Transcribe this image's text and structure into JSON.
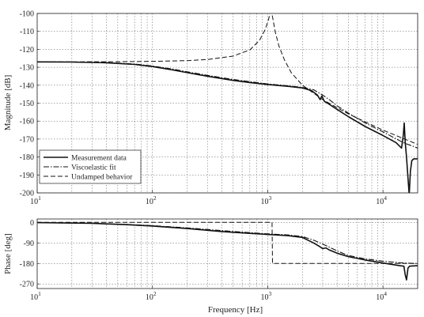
{
  "chart_data": [
    {
      "type": "line",
      "ylabel": "Magnitude [dB]",
      "xlabel": "",
      "xscale": "log",
      "xlim": [
        10,
        20000
      ],
      "ylim": [
        -200,
        -100
      ],
      "grid": true,
      "legend_position": "bottom-left",
      "x_ticks": [
        {
          "base": "10",
          "exp": "1"
        },
        {
          "base": "10",
          "exp": "2"
        },
        {
          "base": "10",
          "exp": "3"
        },
        {
          "base": "10",
          "exp": "4"
        }
      ],
      "y_ticks": [
        "-100",
        "-110",
        "-120",
        "-130",
        "-140",
        "-150",
        "-160",
        "-170",
        "-180",
        "-190",
        "-200"
      ],
      "series": [
        {
          "name": "Measurement data",
          "style": "solid",
          "points": [
            [
              10,
              -127
            ],
            [
              20,
              -127.1
            ],
            [
              40,
              -127.5
            ],
            [
              70,
              -128.4
            ],
            [
              100,
              -129.6
            ],
            [
              150,
              -131.5
            ],
            [
              200,
              -133
            ],
            [
              300,
              -135
            ],
            [
              500,
              -137.3
            ],
            [
              700,
              -138.5
            ],
            [
              1000,
              -139.6
            ],
            [
              1500,
              -140.6
            ],
            [
              2000,
              -141.5
            ],
            [
              2400,
              -143
            ],
            [
              2700,
              -145.5
            ],
            [
              2850,
              -148
            ],
            [
              2950,
              -146
            ],
            [
              3100,
              -149
            ],
            [
              3300,
              -150
            ],
            [
              4000,
              -153.5
            ],
            [
              5000,
              -157.5
            ],
            [
              7000,
              -163
            ],
            [
              10000,
              -168
            ],
            [
              13000,
              -172
            ],
            [
              14500,
              -175
            ],
            [
              15000,
              -168
            ],
            [
              15300,
              -161
            ],
            [
              15600,
              -172
            ],
            [
              16000,
              -180
            ],
            [
              16500,
              -192
            ],
            [
              16900,
              -201
            ],
            [
              17300,
              -188
            ],
            [
              17800,
              -182
            ],
            [
              18500,
              -181
            ],
            [
              20000,
              -181
            ]
          ]
        },
        {
          "name": "Viscoelastic fit",
          "style": "dash-dot",
          "points": [
            [
              10,
              -127
            ],
            [
              20,
              -127.1
            ],
            [
              40,
              -127.4
            ],
            [
              70,
              -128.2
            ],
            [
              100,
              -129.3
            ],
            [
              150,
              -131
            ],
            [
              200,
              -132.5
            ],
            [
              300,
              -134.5
            ],
            [
              500,
              -136.8
            ],
            [
              700,
              -138
            ],
            [
              1000,
              -139.3
            ],
            [
              1500,
              -140.3
            ],
            [
              2000,
              -141.2
            ],
            [
              2500,
              -142.5
            ],
            [
              3000,
              -145.5
            ],
            [
              3500,
              -148.5
            ],
            [
              4000,
              -151.5
            ],
            [
              5000,
              -155.5
            ],
            [
              7000,
              -161
            ],
            [
              10000,
              -166
            ],
            [
              15000,
              -172
            ],
            [
              20000,
              -175
            ]
          ]
        },
        {
          "name": "Undamped behavior",
          "style": "dashed",
          "points": [
            [
              10,
              -127
            ],
            [
              50,
              -126.9
            ],
            [
              100,
              -126.7
            ],
            [
              200,
              -126.3
            ],
            [
              300,
              -125.7
            ],
            [
              500,
              -123.8
            ],
            [
              700,
              -120.3
            ],
            [
              850,
              -115
            ],
            [
              950,
              -109
            ],
            [
              1020,
              -103
            ],
            [
              1055,
              -99
            ],
            [
              1075,
              -99
            ],
            [
              1110,
              -103
            ],
            [
              1160,
              -110
            ],
            [
              1250,
              -118
            ],
            [
              1400,
              -126
            ],
            [
              1600,
              -133
            ],
            [
              2000,
              -140
            ],
            [
              3000,
              -148
            ],
            [
              5000,
              -156
            ],
            [
              10000,
              -165
            ],
            [
              20000,
              -173
            ]
          ]
        }
      ]
    },
    {
      "type": "line",
      "ylabel": "Phase [deg]",
      "xlabel": "Frequency [Hz]",
      "xscale": "log",
      "xlim": [
        10,
        20000
      ],
      "ylim": [
        -290,
        15
      ],
      "grid": true,
      "x_ticks": [
        {
          "base": "10",
          "exp": "1"
        },
        {
          "base": "10",
          "exp": "2"
        },
        {
          "base": "10",
          "exp": "3"
        },
        {
          "base": "10",
          "exp": "4"
        }
      ],
      "y_ticks": [
        "0",
        "-90",
        "-180",
        "-270"
      ],
      "y_tick_values": [
        0,
        -90,
        -180,
        -270
      ],
      "series": [
        {
          "name": "Measurement data",
          "style": "solid",
          "points": [
            [
              10,
              -1
            ],
            [
              30,
              -4
            ],
            [
              60,
              -10
            ],
            [
              100,
              -16
            ],
            [
              200,
              -27
            ],
            [
              400,
              -40
            ],
            [
              700,
              -48
            ],
            [
              1000,
              -53
            ],
            [
              1500,
              -58
            ],
            [
              2000,
              -66
            ],
            [
              2500,
              -90
            ],
            [
              2800,
              -105
            ],
            [
              3000,
              -115
            ],
            [
              3200,
              -112
            ],
            [
              3400,
              -120
            ],
            [
              4000,
              -135
            ],
            [
              5000,
              -150
            ],
            [
              7000,
              -165
            ],
            [
              10000,
              -178
            ],
            [
              14000,
              -190
            ],
            [
              15200,
              -192
            ],
            [
              15600,
              -230
            ],
            [
              16000,
              -252
            ],
            [
              16500,
              -200
            ],
            [
              17000,
              -192
            ],
            [
              20000,
              -190
            ]
          ]
        },
        {
          "name": "Viscoelastic fit",
          "style": "dash-dot",
          "points": [
            [
              10,
              -1
            ],
            [
              30,
              -4
            ],
            [
              60,
              -9
            ],
            [
              100,
              -14
            ],
            [
              200,
              -24
            ],
            [
              400,
              -36
            ],
            [
              700,
              -45
            ],
            [
              1000,
              -50
            ],
            [
              1500,
              -55
            ],
            [
              2000,
              -62
            ],
            [
              2500,
              -78
            ],
            [
              3000,
              -95
            ],
            [
              4000,
              -125
            ],
            [
              5000,
              -145
            ],
            [
              7000,
              -160
            ],
            [
              10000,
              -170
            ],
            [
              15000,
              -178
            ],
            [
              20000,
              -180
            ]
          ]
        },
        {
          "name": "Undamped behavior",
          "style": "dashed",
          "points": [
            [
              10,
              0
            ],
            [
              1090,
              0
            ],
            [
              1100,
              -180
            ],
            [
              20000,
              -180
            ]
          ]
        }
      ]
    }
  ]
}
